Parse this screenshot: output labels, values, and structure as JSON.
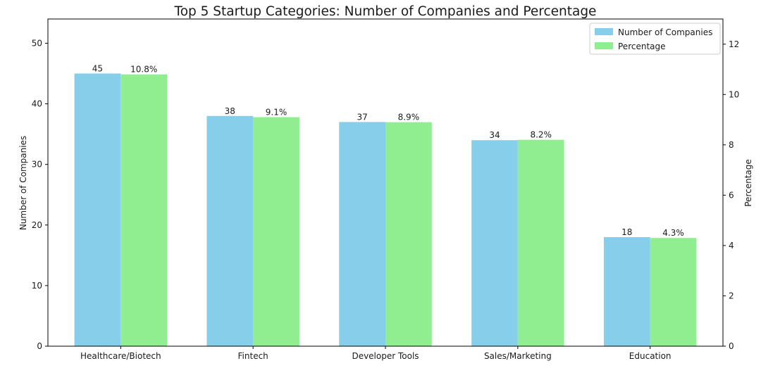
{
  "chart_data": {
    "type": "bar",
    "title": "Top 5 Startup Categories: Number of Companies and Percentage",
    "categories": [
      "Healthcare/Biotech",
      "Fintech",
      "Developer Tools",
      "Sales/Marketing",
      "Education"
    ],
    "series": [
      {
        "name": "Number of Companies",
        "axis": "left",
        "color": "#87ceeb",
        "values": [
          45,
          38,
          37,
          34,
          18
        ],
        "labels": [
          "45",
          "38",
          "37",
          "34",
          "18"
        ]
      },
      {
        "name": "Percentage",
        "axis": "right",
        "color": "#90ee90",
        "values": [
          10.8,
          9.1,
          8.9,
          8.2,
          4.3
        ],
        "labels": [
          "10.8%",
          "9.1%",
          "8.9%",
          "8.2%",
          "4.3%"
        ]
      }
    ],
    "ylabel": "Number of Companies",
    "y2label": "Percentage",
    "ylim": [
      0,
      54
    ],
    "y2lim": [
      0,
      13
    ],
    "yticks": [
      0,
      10,
      20,
      30,
      40,
      50
    ],
    "y2ticks": [
      0,
      2,
      4,
      6,
      8,
      10,
      12
    ],
    "legend_position": "top-right",
    "grid": false
  }
}
